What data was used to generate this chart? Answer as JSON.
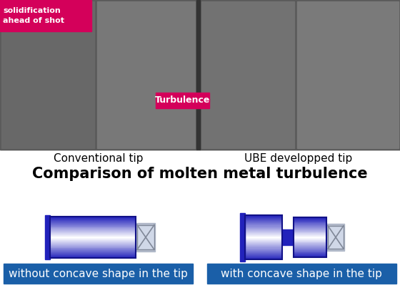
{
  "title": "Comparison of molten metal turbulence",
  "title_fontsize": 15,
  "label_left": "Conventional tip",
  "label_right": "UBE developped tip",
  "label_fontsize": 11,
  "turbulence_label": "Turbulence",
  "solidification_label": "solidification\nahead of shot",
  "caption_left": "without concave shape in the tip",
  "caption_right": "with concave shape in the tip",
  "caption_fontsize": 11,
  "bg_color": "#ffffff",
  "caption_bg_color": "#1a5fa8",
  "caption_text_color": "#ffffff",
  "turbulence_bg": "#d4005a",
  "solidification_bg": "#d4005a",
  "blue_dark": "#2222bb",
  "blue_mid": "#4444dd",
  "gray_connector": "#b0b8c8",
  "gray_dark": "#808898",
  "dark_blue_edge": "#111188",
  "photo_bg": "#555555",
  "photo_left_bg": "#666666",
  "photo_right_bg": "#606060"
}
